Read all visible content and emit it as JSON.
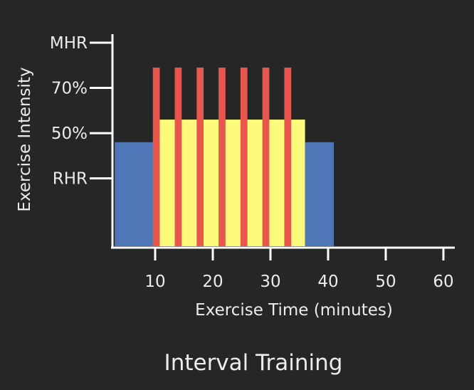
{
  "chart_data": {
    "type": "bar",
    "title": "Interval Training",
    "xlabel": "Exercise Time (minutes)",
    "ylabel": "Exercise Intensity",
    "x_ticks": [
      "10",
      "20",
      "30",
      "40",
      "50",
      "60"
    ],
    "x_tick_values": [
      10,
      20,
      30,
      40,
      50,
      60
    ],
    "y_ticks": [
      {
        "label": "RHR",
        "value": 0.3
      },
      {
        "label": "50%",
        "value": 0.5
      },
      {
        "label": "70%",
        "value": 0.7
      },
      {
        "label": "MHR",
        "value": 0.9
      }
    ],
    "xlim": [
      2,
      62
    ],
    "ylim": [
      0,
      0.9
    ],
    "grid": false,
    "colors": {
      "background": "#262626",
      "axis": "#ffffff",
      "text": "#ececec",
      "warmup": "#4f77b8",
      "moderate": "#fcfa7a",
      "high": "#e8574e"
    },
    "segments": [
      {
        "x0": 3,
        "x1": 10,
        "y": 0.46,
        "color_key": "warmup"
      },
      {
        "x0": 10,
        "x1": 36,
        "y": 0.56,
        "color_key": "moderate"
      },
      {
        "x0": 36,
        "x1": 41,
        "y": 0.46,
        "color_key": "warmup"
      }
    ],
    "intervals": [
      {
        "x": 10.2,
        "y": 0.79
      },
      {
        "x": 14,
        "y": 0.79
      },
      {
        "x": 17.8,
        "y": 0.79
      },
      {
        "x": 21.6,
        "y": 0.79
      },
      {
        "x": 25.4,
        "y": 0.79
      },
      {
        "x": 29.2,
        "y": 0.79
      },
      {
        "x": 33,
        "y": 0.79
      }
    ],
    "interval_width": 1.2
  }
}
